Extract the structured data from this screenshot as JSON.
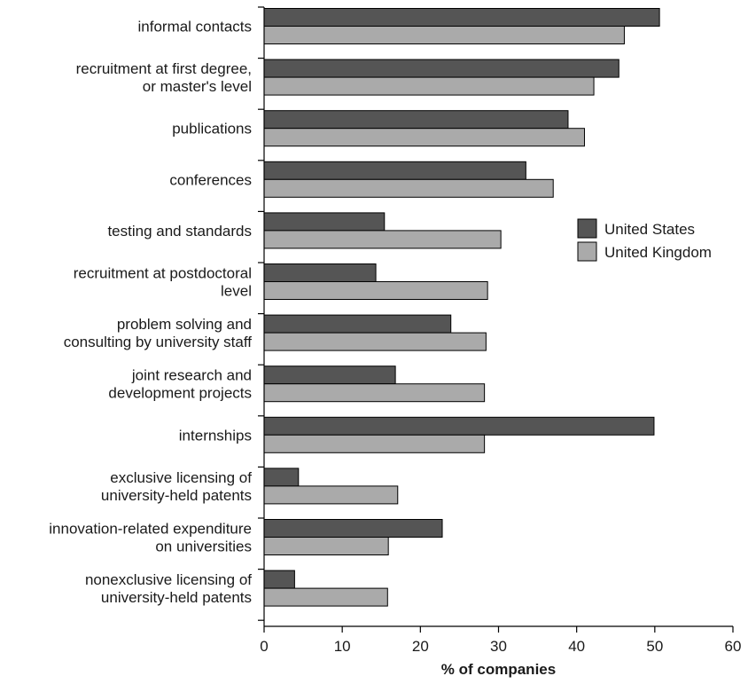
{
  "chart_data": {
    "type": "bar",
    "orientation": "horizontal",
    "title": "",
    "xlabel": "% of companies",
    "ylabel": "",
    "xlim": [
      0,
      60
    ],
    "xticks": [
      0,
      10,
      20,
      30,
      40,
      50,
      60
    ],
    "grid": false,
    "legend_position": "right-middle",
    "categories": [
      [
        "informal contacts"
      ],
      [
        "recruitment at first degree,",
        "or master's level"
      ],
      [
        "publications"
      ],
      [
        "conferences"
      ],
      [
        "testing and standards"
      ],
      [
        "recruitment at postdoctoral",
        "level"
      ],
      [
        "problem solving and",
        "consulting by university staff"
      ],
      [
        "joint research and",
        "development projects"
      ],
      [
        "internships"
      ],
      [
        "exclusive licensing of",
        "university-held patents"
      ],
      [
        "innovation-related expenditure",
        "on universities"
      ],
      [
        "nonexclusive licensing of",
        "university-held patents"
      ]
    ],
    "series": [
      {
        "name": "United States",
        "color": "#555555",
        "values": [
          50.6,
          45.4,
          38.9,
          33.5,
          15.4,
          14.3,
          23.9,
          16.8,
          49.9,
          4.4,
          22.8,
          3.9
        ]
      },
      {
        "name": "United Kingdom",
        "color": "#aaaaaa",
        "values": [
          46.1,
          42.2,
          41.0,
          37.0,
          30.3,
          28.6,
          28.4,
          28.2,
          28.2,
          17.1,
          15.9,
          15.8
        ]
      }
    ]
  }
}
